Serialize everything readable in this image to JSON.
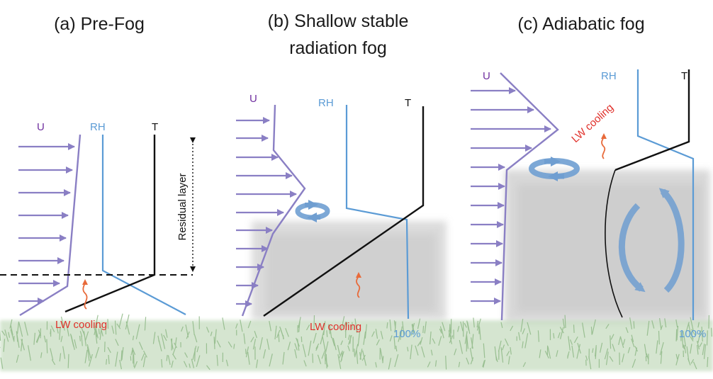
{
  "panels": [
    {
      "title": "(a) Pre-Fog",
      "u_label": "U",
      "rh_label": "RH",
      "t_label": "T",
      "residual_label": "Residual layer",
      "cooling_label": "LW cooling"
    },
    {
      "title_line1": "(b) Shallow stable",
      "title_line2": "radiation fog",
      "u_label": "U",
      "rh_label": "RH",
      "t_label": "T",
      "cooling_label": "LW cooling",
      "rh_value": "100%"
    },
    {
      "title": "(c) Adiabatic fog",
      "u_label": "U",
      "rh_label": "RH",
      "t_label": "T",
      "cooling_label": "LW cooling",
      "rh_value": "100%"
    }
  ],
  "colors": {
    "wind": "#8a7fc4",
    "rh": "#5b9bd5",
    "temperature": "#111111",
    "cooling": "#e0302a",
    "u_text": "#7030a0",
    "fog": "#c8c8c8",
    "grass": "#a8c9a0"
  }
}
